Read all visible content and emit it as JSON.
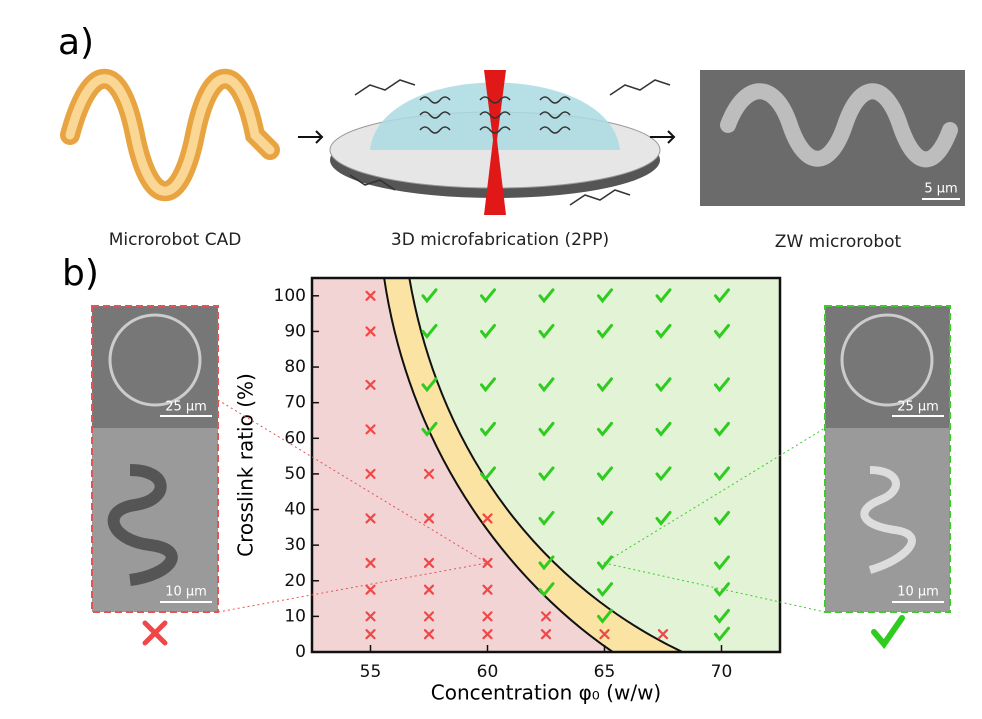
{
  "panel_a": {
    "label": "a)",
    "captions": [
      "Microrobot CAD",
      "3D microfabrication (2PP)",
      "ZW microrobot"
    ],
    "scale_bar": "5 µm"
  },
  "panel_b": {
    "label": "b)",
    "left_scale_bars": [
      "25 µm",
      "10 µm"
    ],
    "right_scale_bars": [
      "25 µm",
      "10 µm"
    ]
  },
  "chart_data": {
    "type": "scatter",
    "x_label": "Concentration φ₀ (w/w)",
    "y_label": "Crosslink ratio (%)",
    "xlim": [
      52.5,
      72.5
    ],
    "ylim": [
      0,
      105
    ],
    "xticks": [
      55,
      60,
      65,
      70
    ],
    "yticks": [
      0,
      10,
      20,
      30,
      40,
      50,
      60,
      70,
      80,
      90,
      100
    ],
    "series": [
      {
        "marker": "cross",
        "color": "#f04848",
        "x": [
          55,
          55,
          55,
          55,
          55,
          55,
          55,
          55,
          55,
          55,
          57.5,
          57.5,
          57.5,
          57.5,
          57.5,
          57.5,
          60,
          60,
          60,
          60,
          60,
          62.5,
          62.5,
          65,
          67.5
        ],
        "values": [
          100,
          90,
          75,
          62.5,
          50,
          37.5,
          25,
          17.5,
          10,
          5,
          50,
          37.5,
          25,
          17.5,
          10,
          5,
          37.5,
          25,
          17.5,
          10,
          5,
          10,
          5,
          5,
          5
        ]
      },
      {
        "marker": "check",
        "color": "#2ecc1f",
        "x": [
          57.5,
          57.5,
          57.5,
          57.5,
          60,
          60,
          60,
          60,
          60,
          62.5,
          62.5,
          62.5,
          62.5,
          62.5,
          62.5,
          62.5,
          62.5,
          65,
          65,
          65,
          65,
          65,
          65,
          65,
          65,
          65,
          67.5,
          67.5,
          67.5,
          67.5,
          67.5,
          67.5,
          70,
          70,
          70,
          70,
          70,
          70,
          70,
          70,
          70,
          70
        ],
        "values": [
          100,
          90,
          75,
          62.5,
          100,
          90,
          75,
          62.5,
          50,
          100,
          90,
          75,
          62.5,
          50,
          37.5,
          25,
          17.5,
          100,
          90,
          75,
          62.5,
          50,
          37.5,
          25,
          17.5,
          10,
          100,
          90,
          75,
          62.5,
          50,
          37.5,
          100,
          90,
          75,
          62.5,
          50,
          37.5,
          25,
          17.5,
          10,
          5
        ]
      }
    ]
  }
}
